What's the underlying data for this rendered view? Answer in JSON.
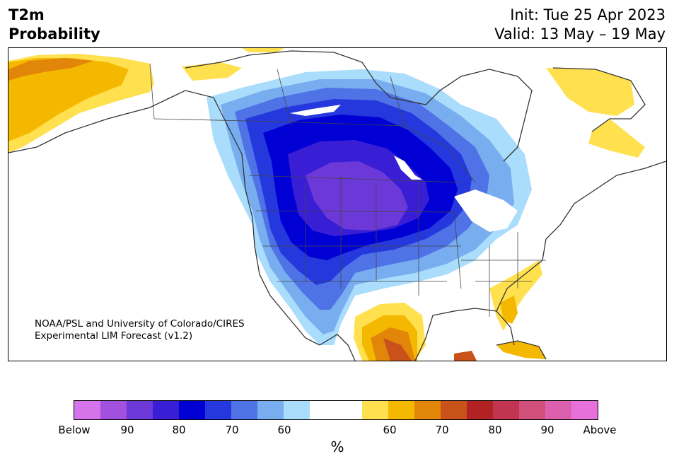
{
  "header": {
    "variable": "T2m",
    "product": "Probability",
    "init": "Init: Tue 25 Apr 2023",
    "valid": "Valid: 13 May – 19 May"
  },
  "credit": {
    "line1": "NOAA/PSL and University of Colorado/CIRES",
    "line2": "Experimental LIM Forecast (v1.2)"
  },
  "colorbar": {
    "unit": "%",
    "colors": [
      "#d473ea",
      "#a250de",
      "#6c38d8",
      "#3a1ed6",
      "#0000d5",
      "#2438de",
      "#4f72e6",
      "#78aef0",
      "#aadcfb",
      "#ffffff",
      "#ffffff",
      "#ffe04e",
      "#f5b800",
      "#e18608",
      "#c9521a",
      "#b22222",
      "#c23550",
      "#d04f7b",
      "#dd60ae",
      "#e771da"
    ],
    "ticks": [
      "Below",
      "90",
      "80",
      "70",
      "60",
      "60",
      "70",
      "80",
      "90",
      "Above"
    ]
  },
  "map": {
    "region": "North America",
    "colors": {
      "below_50": "#aadcfb",
      "below_60": "#78aef0",
      "below_65": "#4f72e6",
      "below_70": "#2438de",
      "below_75": "#0000d5",
      "below_80": "#3a1ed6",
      "below_85": "#6c38d8",
      "above_50": "#ffe04e",
      "above_60": "#f5b800",
      "above_65": "#e18608",
      "above_70": "#c9521a",
      "land_outline": "#333333"
    }
  }
}
